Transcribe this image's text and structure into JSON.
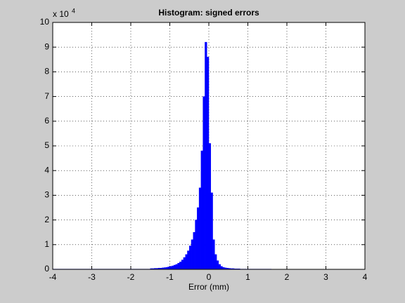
{
  "chart_data": {
    "type": "histogram",
    "title": "Histogram: signed errors",
    "xlabel": "Error (mm)",
    "y_scale_base": "x 10",
    "y_scale_exponent": "4",
    "bins": [
      -4,
      -1.5,
      -1.45,
      -1.4,
      -1.35,
      -1.3,
      -1.25,
      -1.2,
      -1.15,
      -1.1,
      -1.05,
      -1,
      -0.95,
      -0.9,
      -0.85,
      -0.8,
      -0.75,
      -0.7,
      -0.65,
      -0.6,
      -0.55,
      -0.5,
      -0.45,
      -0.4,
      -0.35,
      -0.3,
      -0.25,
      -0.2,
      -0.15,
      -0.1,
      -0.05,
      0,
      0.05,
      0.1,
      0.15,
      0.2,
      0.25,
      0.3,
      0.35,
      0.4,
      0.45,
      0.5,
      0.55,
      0.6,
      0.65,
      0.7,
      0.75,
      0.8,
      0.85,
      0.9,
      0.95,
      1,
      1.6
    ],
    "values": [
      0.01,
      0.03,
      0.03,
      0.04,
      0.04,
      0.05,
      0.05,
      0.06,
      0.07,
      0.08,
      0.1,
      0.12,
      0.14,
      0.17,
      0.2,
      0.25,
      0.3,
      0.38,
      0.48,
      0.6,
      0.75,
      0.95,
      1.2,
      1.5,
      2.0,
      2.5,
      3.3,
      4.8,
      7.0,
      9.2,
      8.6,
      5.1,
      3.1,
      1.2,
      0.6,
      0.35,
      0.2,
      0.12,
      0.08,
      0.06,
      0.05,
      0.04,
      0.03,
      0.03,
      0.02,
      0.02,
      0.02,
      0.01,
      0.01,
      0.01,
      0.01,
      0.01
    ],
    "color": "#0000ff",
    "xlim": [
      -4,
      4
    ],
    "xticks": [
      -4,
      -3,
      -2,
      -1,
      0,
      1,
      2,
      3,
      4
    ],
    "ylim": [
      0,
      10
    ],
    "yticks": [
      0,
      1,
      2,
      3,
      4,
      5,
      6,
      7,
      8,
      9,
      10
    ],
    "grid": true
  }
}
